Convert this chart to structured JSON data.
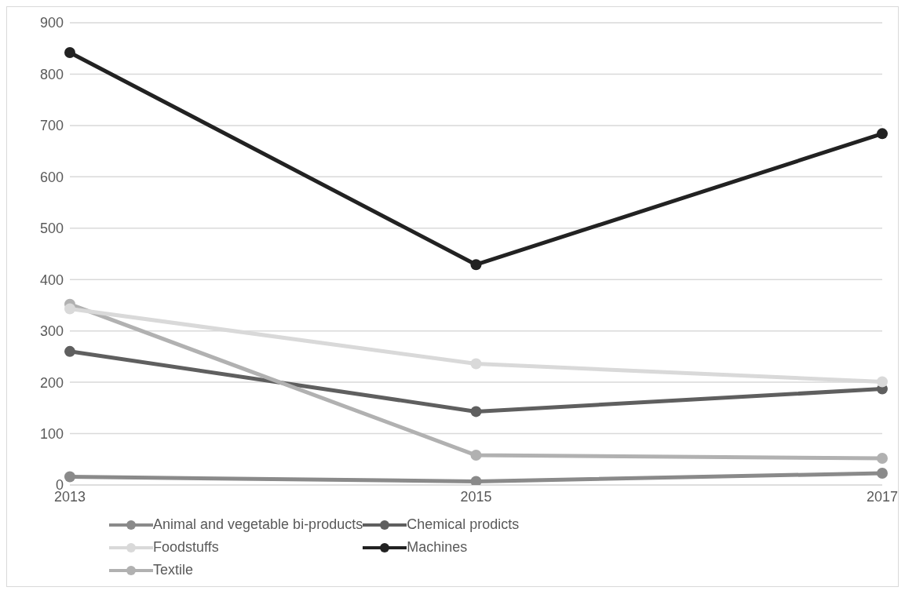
{
  "chart_data": {
    "type": "line",
    "categories": [
      "2013",
      "2015",
      "2017"
    ],
    "series": [
      {
        "name": "Chemical prodicts",
        "color": "#5f5f5f",
        "values": [
          260,
          143,
          187
        ]
      },
      {
        "name": "Textile",
        "color": "#b1b1b1",
        "values": [
          352,
          58,
          52
        ]
      },
      {
        "name": "Animal and vegetable bi-products",
        "color": "#8a8a8a",
        "values": [
          16,
          7,
          23
        ]
      },
      {
        "name": "Machines",
        "color": "#222222",
        "values": [
          842,
          429,
          684
        ]
      },
      {
        "name": "Foodstuffs",
        "color": "#d9d9d9",
        "values": [
          343,
          236,
          201
        ]
      }
    ],
    "ylim": [
      0,
      900
    ],
    "yticks": [
      0,
      100,
      200,
      300,
      400,
      500,
      600,
      700,
      800,
      900
    ],
    "grid": "y",
    "legend": "bottom",
    "marker": "circle",
    "line_style": "solid"
  }
}
